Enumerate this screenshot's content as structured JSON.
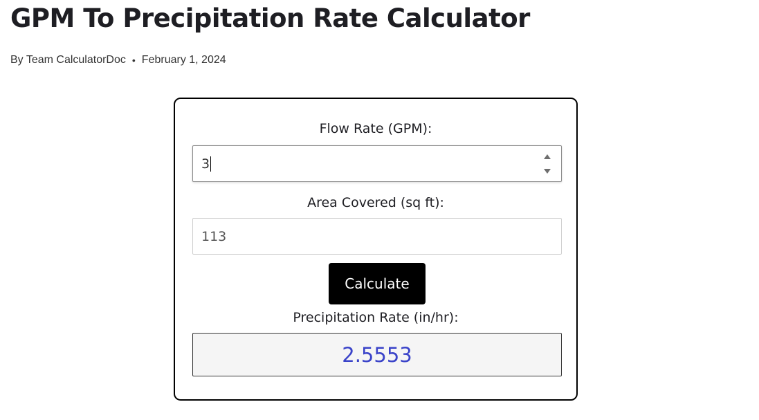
{
  "page": {
    "title": "GPM To Precipitation Rate Calculator",
    "author": "By Team CalculatorDoc",
    "separator": "•",
    "date": "February 1, 2024"
  },
  "calculator": {
    "flow_rate": {
      "label": "Flow Rate (GPM):",
      "value": "3"
    },
    "area": {
      "label": "Area Covered (sq ft):",
      "value": "113"
    },
    "calculate_label": "Calculate",
    "result": {
      "label": "Precipitation Rate (in/hr):",
      "value": "2.5553"
    }
  },
  "colors": {
    "result_text": "#3a43c9",
    "button_bg": "#000000",
    "result_bg": "#f5f5f5"
  },
  "icons": {
    "spinner_up": "spinner-up-arrow-icon",
    "spinner_down": "spinner-down-arrow-icon"
  }
}
